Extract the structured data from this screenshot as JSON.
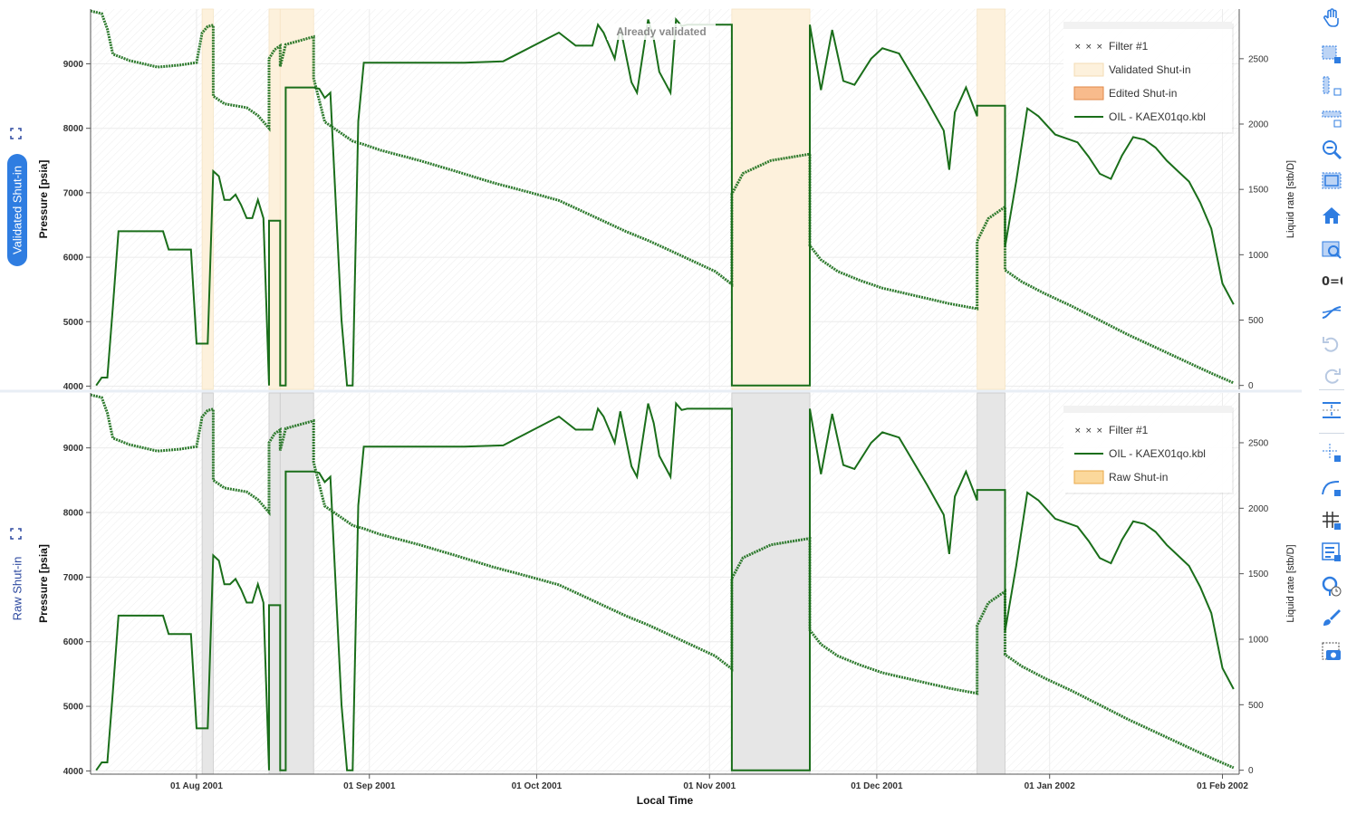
{
  "panels": [
    {
      "tab_label": "Validated Shut-in",
      "tab_active": true,
      "ylabel": "Pressure [psia]",
      "y2label": "Liquid rate [stb/D]",
      "annotation": "Already validated",
      "legend": [
        {
          "label": "Filter #1",
          "style": "cross"
        },
        {
          "label": "Validated Shut-in",
          "style": "patch-light"
        },
        {
          "label": "Edited Shut-in",
          "style": "patch-orange"
        },
        {
          "label": "OIL - KAEX01qo.kbl",
          "style": "line"
        }
      ]
    },
    {
      "tab_label": "Raw Shut-in",
      "tab_active": false,
      "ylabel": "Pressure [psia]",
      "y2label": "Liquid rate [stb/D]",
      "legend": [
        {
          "label": "Filter #1",
          "style": "cross"
        },
        {
          "label": "OIL - KAEX01qo.kbl",
          "style": "line"
        },
        {
          "label": "Raw Shut-in",
          "style": "patch-yellow"
        }
      ]
    }
  ],
  "xlabel": "Local Time",
  "colors": {
    "series": "#1a6e1a",
    "shutin_validated": "#fdf1dc",
    "shutin_raw": "#e6e6e6",
    "tab_active": "#2f7de1",
    "tab_text": "#2e4aa0",
    "toolbar": "#2f7de1"
  },
  "toolbar_icons": [
    "pan-icon",
    "box-select-icon",
    "x-select-icon",
    "y-select-icon",
    "zoom-icon",
    "box-zoom-icon",
    "home-icon",
    "zoom-fit-icon",
    "link-axes-icon",
    "trend-icon",
    "undo-icon",
    "redo-icon",
    "range-icon",
    "crosshair-icon",
    "curve-edit-icon",
    "grid-icon",
    "legend-icon",
    "time-marker-icon",
    "brush-icon",
    "camera-icon"
  ],
  "chart_data": {
    "type": "line",
    "x_type": "date",
    "xlim": [
      "2001-07-13",
      "2002-02-04"
    ],
    "x_ticks": [
      "01 Aug 2001",
      "01 Sep 2001",
      "01 Oct 2001",
      "01 Nov 2001",
      "01 Dec 2001",
      "01 Jan 2002",
      "01 Feb 2002"
    ],
    "y_left": {
      "label": "Pressure [psia]",
      "lim": [
        3950,
        9850
      ],
      "ticks": [
        4000,
        5000,
        6000,
        7000,
        8000,
        9000
      ]
    },
    "y_right": {
      "label": "Liquid rate [stb/D]",
      "lim": [
        -30,
        2880
      ],
      "ticks": [
        0,
        500,
        1000,
        1500,
        2000,
        2500
      ]
    },
    "shut_in_periods": [
      {
        "start": "2001-08-02",
        "end": "2001-08-04"
      },
      {
        "start": "2001-08-14",
        "end": "2001-08-16"
      },
      {
        "start": "2001-08-16",
        "end": "2001-08-22"
      },
      {
        "start": "2001-11-05",
        "end": "2001-11-19"
      },
      {
        "start": "2001-12-19",
        "end": "2001-12-24"
      }
    ],
    "series": [
      {
        "name": "OIL - KAEX01qo.kbl",
        "axis": "right",
        "x": [
          "2001-07-14",
          "2001-07-15",
          "2001-07-16",
          "2001-07-17",
          "2001-07-18",
          "2001-07-20",
          "2001-07-26",
          "2001-07-27",
          "2001-07-29",
          "2001-07-31",
          "2001-08-01",
          "2001-08-03",
          "2001-08-04",
          "2001-08-04",
          "2001-08-05",
          "2001-08-06",
          "2001-08-07",
          "2001-08-08",
          "2001-08-09",
          "2001-08-10",
          "2001-08-11",
          "2001-08-12",
          "2001-08-13",
          "2001-08-14",
          "2001-08-14",
          "2001-08-16",
          "2001-08-16",
          "2001-08-17",
          "2001-08-17",
          "2001-08-22",
          "2001-08-23",
          "2001-08-24",
          "2001-08-25",
          "2001-08-27",
          "2001-08-28",
          "2001-08-29",
          "2001-08-30",
          "2001-08-31",
          "2001-09-03",
          "2001-09-06",
          "2001-09-10",
          "2001-09-18",
          "2001-09-25",
          "2001-10-05",
          "2001-10-08",
          "2001-10-11",
          "2001-10-12",
          "2001-10-13",
          "2001-10-15",
          "2001-10-16",
          "2001-10-18",
          "2001-10-19",
          "2001-10-21",
          "2001-10-22",
          "2001-10-23",
          "2001-10-24",
          "2001-10-25",
          "2001-10-26",
          "2001-10-27",
          "2001-10-28",
          "2001-10-30",
          "2001-11-05",
          "2001-11-05",
          "2001-11-19",
          "2001-11-19",
          "2001-11-21",
          "2001-11-23",
          "2001-11-25",
          "2001-11-27",
          "2001-11-30",
          "2001-12-02",
          "2001-12-05",
          "2001-12-10",
          "2001-12-13",
          "2001-12-14",
          "2001-12-15",
          "2001-12-17",
          "2001-12-19",
          "2001-12-19",
          "2001-12-24",
          "2001-12-24",
          "2001-12-26",
          "2001-12-28",
          "2001-12-30",
          "2002-01-02",
          "2002-01-06",
          "2002-01-08",
          "2002-01-10",
          "2002-01-12",
          "2002-01-14",
          "2002-01-16",
          "2002-01-18",
          "2002-01-20",
          "2002-01-22",
          "2002-01-24",
          "2002-01-26",
          "2002-01-28",
          "2002-01-30",
          "2002-02-01",
          "2002-02-03"
        ],
        "y": [
          0,
          60,
          60,
          600,
          1180,
          1180,
          1180,
          1040,
          1040,
          1040,
          320,
          320,
          1640,
          1640,
          1600,
          1420,
          1420,
          1460,
          1380,
          1280,
          1280,
          1420,
          1280,
          0,
          1260,
          1260,
          0,
          0,
          2280,
          2280,
          2270,
          2200,
          2240,
          500,
          0,
          0,
          2020,
          2470,
          2470,
          2470,
          2470,
          2470,
          2480,
          2700,
          2600,
          2600,
          2760,
          2700,
          2500,
          2740,
          2320,
          2240,
          2800,
          2650,
          2400,
          2320,
          2240,
          2800,
          2750,
          2760,
          2760,
          2760,
          0,
          0,
          2760,
          2260,
          2720,
          2330,
          2300,
          2500,
          2580,
          2540,
          2180,
          1950,
          1650,
          2090,
          2280,
          2060,
          2140,
          2140,
          1060,
          1560,
          2120,
          2060,
          1920,
          1860,
          1750,
          1620,
          1580,
          1760,
          1900,
          1880,
          1820,
          1720,
          1640,
          1560,
          1400,
          1200,
          780,
          620
        ]
      },
      {
        "name": "Filter #1",
        "axis": "left",
        "x": [
          "2001-07-13",
          "2001-07-15",
          "2001-07-16",
          "2001-07-17",
          "2001-07-20",
          "2001-07-25",
          "2001-07-29",
          "2001-08-01",
          "2001-08-02",
          "2001-08-03",
          "2001-08-04",
          "2001-08-04",
          "2001-08-06",
          "2001-08-10",
          "2001-08-12",
          "2001-08-14",
          "2001-08-14",
          "2001-08-15",
          "2001-08-16",
          "2001-08-16",
          "2001-08-17",
          "2001-08-22",
          "2001-08-22",
          "2001-08-24",
          "2001-08-27",
          "2001-08-29",
          "2001-08-31",
          "2001-09-03",
          "2001-09-10",
          "2001-09-17",
          "2001-09-23",
          "2001-09-30",
          "2001-10-05",
          "2001-10-09",
          "2001-10-13",
          "2001-10-17",
          "2001-10-21",
          "2001-10-25",
          "2001-10-29",
          "2001-11-02",
          "2001-11-05",
          "2001-11-05",
          "2001-11-07",
          "2001-11-12",
          "2001-11-19",
          "2001-11-19",
          "2001-11-21",
          "2001-11-24",
          "2001-11-28",
          "2001-12-02",
          "2001-12-06",
          "2001-12-10",
          "2001-12-14",
          "2001-12-19",
          "2001-12-19",
          "2001-12-21",
          "2001-12-24",
          "2001-12-24",
          "2001-12-27",
          "2001-12-31",
          "2002-01-05",
          "2002-01-10",
          "2002-01-15",
          "2002-01-20",
          "2002-01-25",
          "2002-01-30",
          "2002-02-03"
        ],
        "y": [
          9820,
          9780,
          9540,
          9150,
          9050,
          8950,
          8980,
          9020,
          9480,
          9580,
          9600,
          8500,
          8380,
          8320,
          8200,
          8000,
          9080,
          9220,
          9280,
          8960,
          9300,
          9420,
          8780,
          8100,
          7920,
          7800,
          7750,
          7660,
          7500,
          7320,
          7160,
          7000,
          6880,
          6720,
          6560,
          6400,
          6260,
          6100,
          5940,
          5780,
          5580,
          6980,
          7300,
          7500,
          7600,
          6180,
          5960,
          5780,
          5640,
          5520,
          5440,
          5360,
          5280,
          5200,
          6250,
          6600,
          6780,
          5800,
          5620,
          5440,
          5240,
          5020,
          4800,
          4600,
          4400,
          4200,
          4050
        ]
      }
    ]
  }
}
